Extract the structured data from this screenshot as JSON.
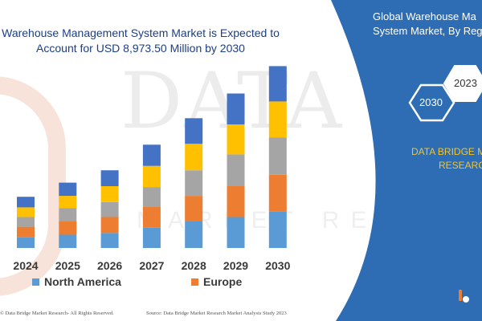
{
  "watermark": {
    "text": "DATA BRIDGE",
    "sub": "MARKET RESEARCH"
  },
  "title": {
    "line1": "Warehouse Management System Market is Expected to",
    "line2": "Account for USD 8,973.50 Million by 2030"
  },
  "chart_data": {
    "type": "bar",
    "stacked": true,
    "categories": [
      "2024",
      "2025",
      "2026",
      "2027",
      "2028",
      "2029",
      "2030"
    ],
    "series": [
      {
        "name": "North America",
        "color": "#5b9bd5",
        "values": [
          1.2,
          1.5,
          1.7,
          2.3,
          3.0,
          3.5,
          4.1
        ]
      },
      {
        "name": "Europe",
        "color": "#ed7d31",
        "values": [
          1.2,
          1.5,
          1.8,
          2.4,
          2.9,
          3.5,
          4.2
        ]
      },
      {
        "name": "",
        "color": "#a5a5a5",
        "values": [
          1.1,
          1.5,
          1.7,
          2.2,
          2.9,
          3.6,
          4.2
        ]
      },
      {
        "name": "",
        "color": "#ffc000",
        "values": [
          1.1,
          1.4,
          1.8,
          2.4,
          3.0,
          3.4,
          4.1
        ]
      },
      {
        "name": "",
        "color": "#4472c4",
        "values": [
          1.2,
          1.5,
          1.8,
          2.4,
          2.9,
          3.5,
          4.0
        ]
      }
    ],
    "ylim": [
      0,
      20
    ],
    "grid": false,
    "legend": "bottom"
  },
  "legend": [
    {
      "label": "North America",
      "color": "#5b9bd5"
    },
    {
      "label": "Europe",
      "color": "#ed7d31"
    }
  ],
  "footer": {
    "copyright": "© Data Bridge Market Research- All Rights Reserved.",
    "source": "Source: Data Bridge Market Research Market Analysis Study 2023"
  },
  "panel": {
    "title_line1": "Global Warehouse Ma",
    "title_line2": "System Market, By Reg",
    "hex_2023": "2023",
    "hex_2030": "2030",
    "brand_line1": "DATA BRIDGE M",
    "brand_line2": "RESEARC",
    "bg_color": "#2e6db4",
    "brand_color": "#f3c32b"
  }
}
